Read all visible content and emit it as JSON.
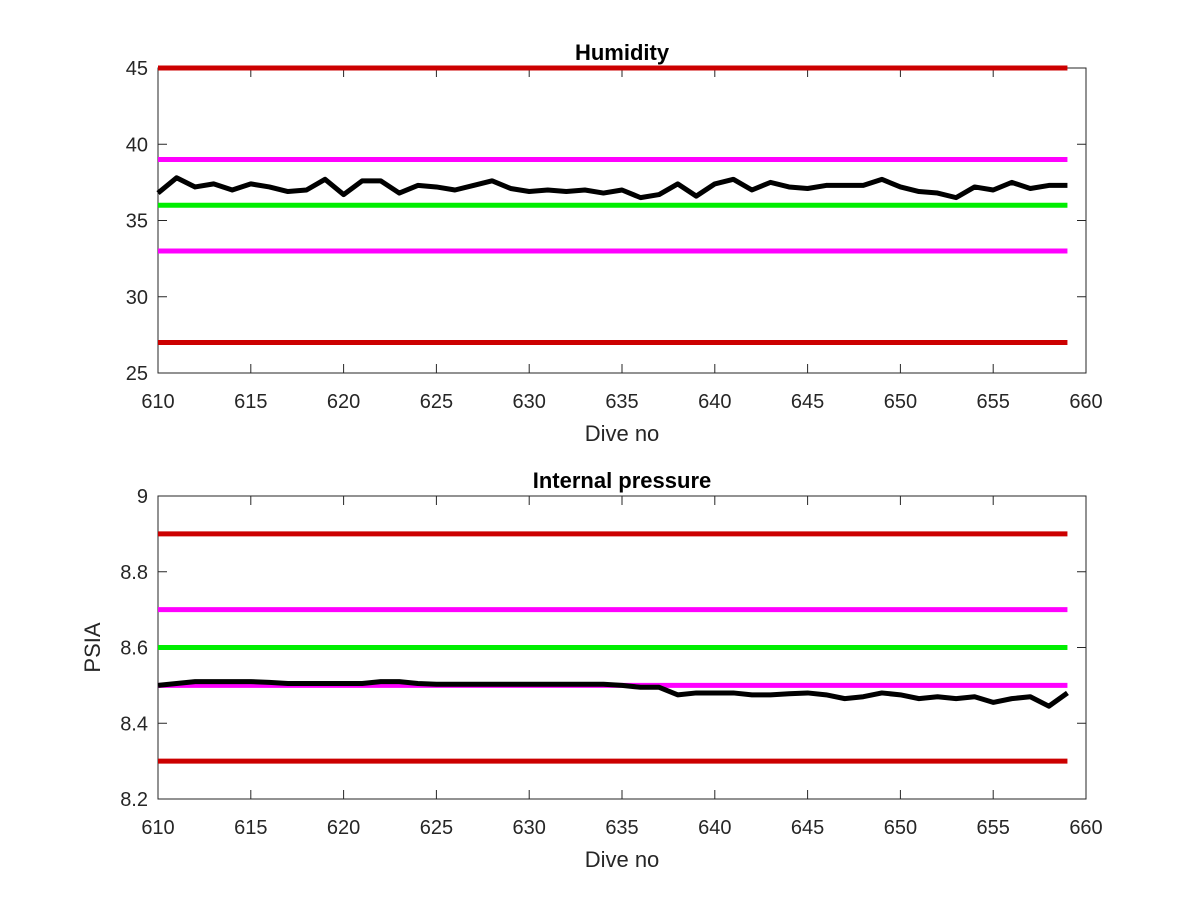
{
  "chart_data": [
    {
      "type": "line",
      "title": "Humidity",
      "xlabel": "Dive no",
      "ylabel": "",
      "xlim": [
        610,
        660
      ],
      "ylim": [
        25,
        45
      ],
      "xticks": [
        "610",
        "615",
        "620",
        "625",
        "630",
        "635",
        "640",
        "645",
        "650",
        "655",
        "660"
      ],
      "yticks": [
        "25",
        "30",
        "35",
        "40",
        "45"
      ],
      "grid": false,
      "reference_lines": [
        {
          "y": 45,
          "color": "#cc0000"
        },
        {
          "y": 39,
          "color": "#ff00ff"
        },
        {
          "y": 36,
          "color": "#00ee00"
        },
        {
          "y": 33,
          "color": "#ff00ff"
        },
        {
          "y": 27,
          "color": "#cc0000"
        }
      ],
      "series": [
        {
          "color": "#000000",
          "x": [
            610,
            611,
            612,
            613,
            614,
            615,
            616,
            617,
            618,
            619,
            620,
            621,
            622,
            623,
            624,
            625,
            626,
            627,
            628,
            629,
            630,
            631,
            632,
            633,
            634,
            635,
            636,
            637,
            638,
            639,
            640,
            641,
            642,
            643,
            644,
            645,
            646,
            647,
            648,
            649,
            650,
            651,
            652,
            653,
            654,
            655,
            656,
            657,
            658,
            659
          ],
          "y": [
            36.8,
            37.8,
            37.2,
            37.4,
            37.0,
            37.4,
            37.2,
            36.9,
            37.0,
            37.7,
            36.7,
            37.6,
            37.6,
            36.8,
            37.3,
            37.2,
            37.0,
            37.3,
            37.6,
            37.1,
            36.9,
            37.0,
            36.9,
            37.0,
            36.8,
            37.0,
            36.5,
            36.7,
            37.4,
            36.6,
            37.4,
            37.7,
            37.0,
            37.5,
            37.2,
            37.1,
            37.3,
            37.3,
            37.3,
            37.7,
            37.2,
            36.9,
            36.8,
            36.5,
            37.2,
            37.0,
            37.5,
            37.1,
            37.3,
            37.3
          ]
        }
      ]
    },
    {
      "type": "line",
      "title": "Internal pressure",
      "xlabel": "Dive no",
      "ylabel": "PSIA",
      "xlim": [
        610,
        660
      ],
      "ylim": [
        8.2,
        9.0
      ],
      "xticks": [
        "610",
        "615",
        "620",
        "625",
        "630",
        "635",
        "640",
        "645",
        "650",
        "655",
        "660"
      ],
      "yticks": [
        "8.2",
        "8.4",
        "8.6",
        "8.8",
        "9"
      ],
      "grid": false,
      "reference_lines": [
        {
          "y": 8.9,
          "color": "#cc0000"
        },
        {
          "y": 8.7,
          "color": "#ff00ff"
        },
        {
          "y": 8.6,
          "color": "#00ee00"
        },
        {
          "y": 8.5,
          "color": "#ff00ff"
        },
        {
          "y": 8.3,
          "color": "#cc0000"
        }
      ],
      "series": [
        {
          "color": "#000000",
          "x": [
            610,
            611,
            612,
            613,
            614,
            615,
            616,
            617,
            618,
            619,
            620,
            621,
            622,
            623,
            624,
            625,
            626,
            627,
            628,
            629,
            630,
            631,
            632,
            633,
            634,
            635,
            636,
            637,
            638,
            639,
            640,
            641,
            642,
            643,
            644,
            645,
            646,
            647,
            648,
            649,
            650,
            651,
            652,
            653,
            654,
            655,
            656,
            657,
            658,
            659
          ],
          "y": [
            8.5,
            8.505,
            8.51,
            8.51,
            8.51,
            8.51,
            8.508,
            8.505,
            8.505,
            8.505,
            8.505,
            8.505,
            8.51,
            8.51,
            8.505,
            8.503,
            8.503,
            8.503,
            8.503,
            8.503,
            8.503,
            8.503,
            8.503,
            8.503,
            8.503,
            8.5,
            8.495,
            8.495,
            8.475,
            8.48,
            8.48,
            8.48,
            8.475,
            8.475,
            8.478,
            8.48,
            8.475,
            8.465,
            8.47,
            8.48,
            8.475,
            8.465,
            8.47,
            8.465,
            8.47,
            8.455,
            8.465,
            8.47,
            8.445,
            8.48
          ]
        }
      ]
    }
  ]
}
